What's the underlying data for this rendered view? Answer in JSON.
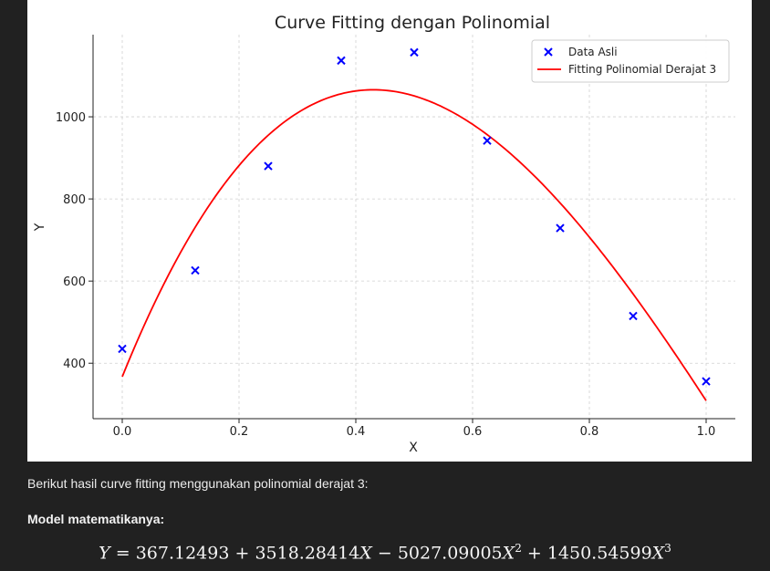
{
  "chart_data": {
    "type": "scatter",
    "title": "Curve Fitting dengan Polinomial",
    "xlabel": "X",
    "ylabel": "Y",
    "xlim": [
      -0.05,
      1.05
    ],
    "ylim": [
      265,
      1200
    ],
    "x_ticks": [
      0.0,
      0.2,
      0.4,
      0.6,
      0.8,
      1.0
    ],
    "x_tick_labels": [
      "0.0",
      "0.2",
      "0.4",
      "0.6",
      "0.8",
      "1.0"
    ],
    "y_ticks": [
      400,
      600,
      800,
      1000
    ],
    "y_tick_labels": [
      "400",
      "600",
      "800",
      "1000"
    ],
    "grid": true,
    "legend_position": "top-right",
    "series": [
      {
        "name": "Data Asli",
        "kind": "scatter",
        "marker": "x",
        "color": "#0000ff",
        "x": [
          0.0,
          0.125,
          0.25,
          0.375,
          0.5,
          0.625,
          0.75,
          0.875,
          1.0
        ],
        "y": [
          435,
          626,
          880,
          1137,
          1157,
          942,
          729,
          515,
          356
        ]
      },
      {
        "name": "Fitting Polinomial Derajat 3",
        "kind": "line",
        "color": "#ff0000",
        "coefficients": [
          367.12493,
          3518.28414,
          -5027.09005,
          1450.54599
        ]
      }
    ]
  },
  "text": {
    "intro": "Berikut hasil curve fitting menggunakan polinomial derajat 3:",
    "model_heading": "Model matematikanya:",
    "formula": {
      "lhs": "Y",
      "eq": " = ",
      "c0": "367.12493",
      "op1": " + ",
      "c1": "3518.28414",
      "var1": "X",
      "op2": " − ",
      "c2": "5027.09005",
      "var2": "X",
      "exp2": "2",
      "op3": " + ",
      "c3": "1450.54599",
      "var3": "X",
      "exp3": "3"
    }
  }
}
